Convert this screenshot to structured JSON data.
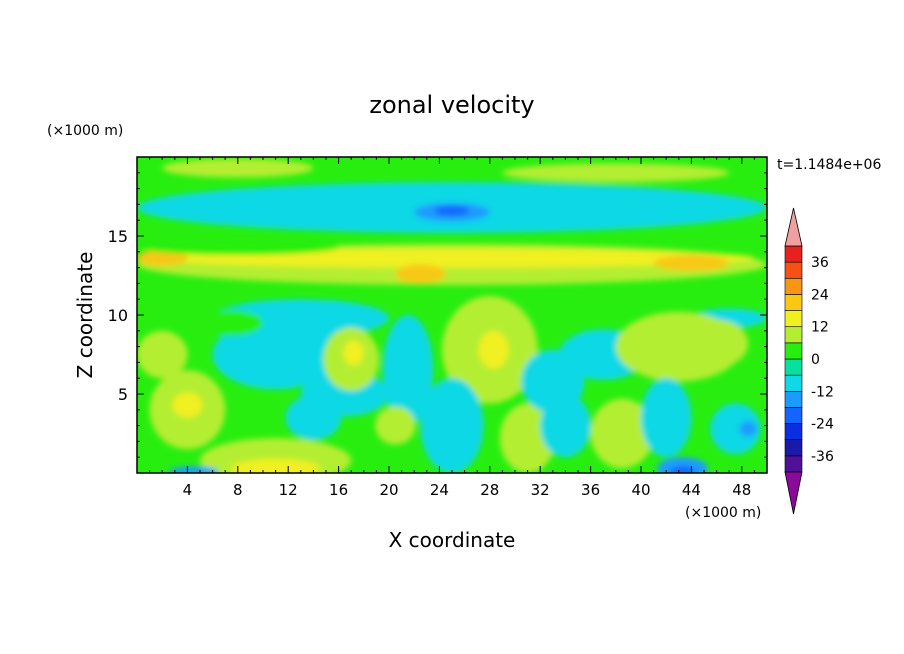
{
  "chart_data": {
    "type": "heatmap",
    "title": "zonal velocity",
    "xlabel": "X coordinate",
    "ylabel": "Z coordinate",
    "x_unit": "(×1000 m)",
    "y_unit": "(×1000 m)",
    "time_label": "t=1.1484e+06",
    "xlim": [
      0,
      50
    ],
    "ylim": [
      0,
      20
    ],
    "x_ticks": [
      4,
      8,
      12,
      16,
      20,
      24,
      28,
      32,
      36,
      40,
      44,
      48
    ],
    "y_ticks": [
      5,
      10,
      15
    ],
    "colorbar": {
      "tick_values": [
        36,
        24,
        12,
        0,
        -12,
        -24,
        -36
      ],
      "levels": [
        -42,
        -36,
        -30,
        -24,
        -18,
        -12,
        -6,
        0,
        6,
        12,
        18,
        24,
        30,
        36,
        42
      ],
      "colors": {
        "below": "#8a0a9a",
        "bands": [
          "#50109a",
          "#1a1aaa",
          "#0a2ee0",
          "#1464ff",
          "#1a9cff",
          "#10d8e6",
          "#08e0a0",
          "#28ee10",
          "#b4ee30",
          "#f0f020",
          "#f8c814",
          "#f89614",
          "#f85014",
          "#e82020"
        ],
        "above": "#f0a0a0"
      }
    },
    "field_background": 2,
    "field_features": [
      {
        "x": 25,
        "y": 13.2,
        "rx": 25,
        "ry": 1.3,
        "value": 9
      },
      {
        "x": 25,
        "y": 13.6,
        "rx": 24,
        "ry": 0.6,
        "value": 14
      },
      {
        "x": 2,
        "y": 13.6,
        "rx": 2,
        "ry": 0.5,
        "value": 18
      },
      {
        "x": 22.5,
        "y": 12.6,
        "rx": 2,
        "ry": 0.6,
        "value": 18
      },
      {
        "x": 44,
        "y": 13.3,
        "rx": 3,
        "ry": 0.5,
        "value": 18
      },
      {
        "x": 25,
        "y": 16.8,
        "rx": 25,
        "ry": 1.6,
        "value": -9
      },
      {
        "x": 16,
        "y": 17,
        "rx": 6,
        "ry": 0.8,
        "value": -12
      },
      {
        "x": 25,
        "y": 16.5,
        "rx": 3,
        "ry": 0.6,
        "value": -13
      },
      {
        "x": 25,
        "y": 16.6,
        "rx": 1.4,
        "ry": 0.3,
        "value": -19
      },
      {
        "x": 40,
        "y": 16.2,
        "rx": 6,
        "ry": 0.5,
        "value": -12
      },
      {
        "x": 8,
        "y": 19.3,
        "rx": 6,
        "ry": 0.6,
        "value": 7
      },
      {
        "x": 38,
        "y": 19,
        "rx": 9,
        "ry": 0.6,
        "value": 7
      },
      {
        "x": 8,
        "y": 14.3,
        "rx": 8,
        "ry": 0.5,
        "value": 2
      },
      {
        "x": 13,
        "y": 9.8,
        "rx": 7,
        "ry": 1.2,
        "value": -8
      },
      {
        "x": 47,
        "y": 9.8,
        "rx": 3,
        "ry": 0.6,
        "value": -8
      },
      {
        "x": 2,
        "y": 7.5,
        "rx": 2,
        "ry": 1.5,
        "value": 8
      },
      {
        "x": 11,
        "y": 7.5,
        "rx": 5,
        "ry": 2.2,
        "value": -7
      },
      {
        "x": 16.5,
        "y": 5,
        "rx": 3.5,
        "ry": 1.4,
        "value": -11
      },
      {
        "x": 17,
        "y": 7.2,
        "rx": 2.2,
        "ry": 2.0,
        "value": 9
      },
      {
        "x": 17.2,
        "y": 7.6,
        "rx": 0.8,
        "ry": 0.8,
        "value": 13
      },
      {
        "x": 21.5,
        "y": 6.5,
        "rx": 2,
        "ry": 3.5,
        "value": -9
      },
      {
        "x": 4,
        "y": 4,
        "rx": 3,
        "ry": 2.5,
        "value": 9
      },
      {
        "x": 4,
        "y": 4.3,
        "rx": 1.2,
        "ry": 0.8,
        "value": 14
      },
      {
        "x": 11,
        "y": 0.8,
        "rx": 6,
        "ry": 1.4,
        "value": 8
      },
      {
        "x": 11,
        "y": 0.3,
        "rx": 3.5,
        "ry": 0.6,
        "value": 14
      },
      {
        "x": 14,
        "y": 3.5,
        "rx": 2.2,
        "ry": 1.4,
        "value": -8
      },
      {
        "x": 20.5,
        "y": 3,
        "rx": 1.6,
        "ry": 1.2,
        "value": 8
      },
      {
        "x": 28,
        "y": 7.8,
        "rx": 3.8,
        "ry": 3.4,
        "value": 10
      },
      {
        "x": 28.3,
        "y": 7.8,
        "rx": 1.2,
        "ry": 1.2,
        "value": 15
      },
      {
        "x": 25,
        "y": 3,
        "rx": 2.5,
        "ry": 3,
        "value": -8
      },
      {
        "x": 31,
        "y": 2.2,
        "rx": 2.2,
        "ry": 2.2,
        "value": 8
      },
      {
        "x": 33,
        "y": 5.8,
        "rx": 2.5,
        "ry": 2,
        "value": -8
      },
      {
        "x": 34,
        "y": 3,
        "rx": 2,
        "ry": 2,
        "value": -10
      },
      {
        "x": 37,
        "y": 7.5,
        "rx": 3.5,
        "ry": 1.6,
        "value": -8
      },
      {
        "x": 43,
        "y": 8,
        "rx": 5,
        "ry": 2.2,
        "value": 6
      },
      {
        "x": 46,
        "y": 8.2,
        "rx": 2.5,
        "ry": 1.5,
        "value": 10
      },
      {
        "x": 38.5,
        "y": 2.5,
        "rx": 2.5,
        "ry": 2.2,
        "value": 7
      },
      {
        "x": 42,
        "y": 3.5,
        "rx": 2,
        "ry": 2.5,
        "value": -8
      },
      {
        "x": 43.3,
        "y": 0.3,
        "rx": 2,
        "ry": 0.7,
        "value": -14
      },
      {
        "x": 43.3,
        "y": 0.1,
        "rx": 1,
        "ry": 0.3,
        "value": -22
      },
      {
        "x": 47.5,
        "y": 2.8,
        "rx": 2,
        "ry": 1.6,
        "value": -10
      },
      {
        "x": 48.5,
        "y": 2.8,
        "rx": 0.7,
        "ry": 0.5,
        "value": -16
      },
      {
        "x": 4.5,
        "y": 0.1,
        "rx": 2,
        "ry": 0.3,
        "value": -13
      },
      {
        "x": 7.5,
        "y": 9.5,
        "rx": 2.5,
        "ry": 0.8,
        "value": 5
      }
    ]
  }
}
